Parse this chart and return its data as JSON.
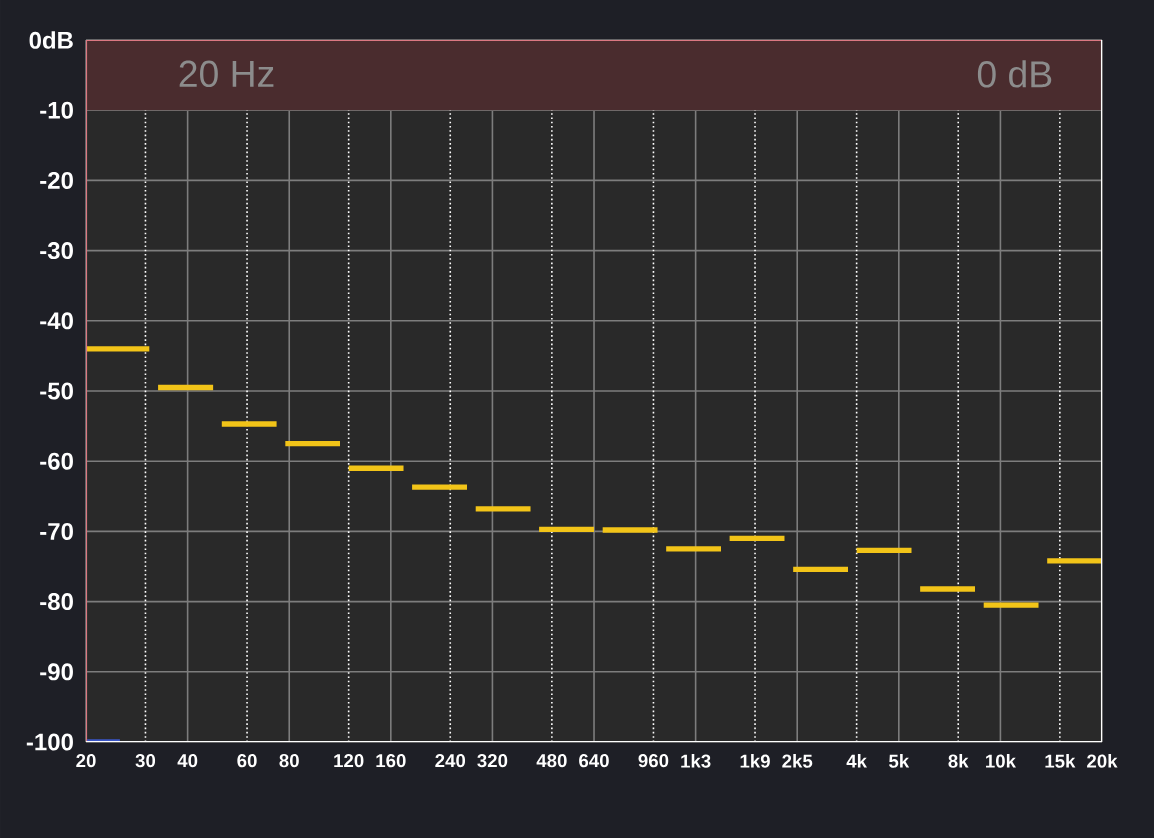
{
  "chart_data": {
    "type": "line",
    "x": [
      20,
      30.8,
      31.7,
      32.7,
      47.6,
      49.0,
      50.5,
      73.4,
      75.6,
      77.9,
      113.1,
      116.5,
      120.0,
      174.5,
      179.7,
      185.0,
      269.1,
      277.2,
      285.5,
      415,
      427,
      440,
      640,
      659,
      679,
      987,
      1017,
      1047,
      1522,
      1568,
      1614,
      2347,
      2417,
      2490,
      3620,
      3729,
      3840,
      5583,
      5750,
      5922,
      8611,
      8869,
      9136,
      13280,
      13678,
      14090,
      20480
    ],
    "series": [
      {
        "color": "#f2c418",
        "values": [
          -44,
          -44,
          null,
          -49.5,
          -49.5,
          null,
          -54.7,
          -54.7,
          null,
          -57.5,
          -57.5,
          null,
          -61,
          -61,
          null,
          -63.7,
          -63.7,
          null,
          -66.8,
          -66.8,
          null,
          -69.7,
          -69.7,
          null,
          -69.8,
          -69.8,
          null,
          -72.5,
          -72.5,
          null,
          -71,
          -71,
          null,
          -75.4,
          -75.4,
          null,
          -72.7,
          -72.7,
          null,
          -78.2,
          -78.2,
          null,
          -80.5,
          -80.5,
          null,
          -74.2,
          -74.2
        ]
      },
      {
        "color": "#3a56c8",
        "x": [
          20,
          25.2
        ],
        "values": [
          -100,
          -100
        ]
      }
    ],
    "log": "x",
    "xlim": [
      20,
      20480
    ],
    "xticks": [
      20,
      30,
      40,
      60,
      80,
      120,
      160,
      240,
      320,
      480,
      640,
      960,
      {
        "value": 1280,
        "label": "1k3"
      },
      {
        "value": 1920,
        "label": "1k9"
      },
      {
        "value": 2560,
        "label": "2k5"
      },
      {
        "value": 3840,
        "label": "4k"
      },
      {
        "value": 5120,
        "label": "5k"
      },
      {
        "value": 7680,
        "label": "8k"
      },
      {
        "value": 10240,
        "label": "10k"
      },
      {
        "value": 15360,
        "label": "15k"
      },
      {
        "value": 20480,
        "label": "20k"
      }
    ],
    "ylim": [
      -100,
      0
    ],
    "yticks": [
      {
        "value": 0,
        "label": "0dB"
      },
      -10,
      -20,
      -30,
      -40,
      -50,
      -60,
      -70,
      -80,
      -90,
      -100
    ],
    "grid": true,
    "marker": "none",
    "line_style": "solid",
    "bands": [
      {
        "axis": "y",
        "from": -10,
        "to": 0,
        "color": "#4a2c2e"
      }
    ],
    "annotations": [
      "20 Hz",
      "0 dB"
    ]
  }
}
